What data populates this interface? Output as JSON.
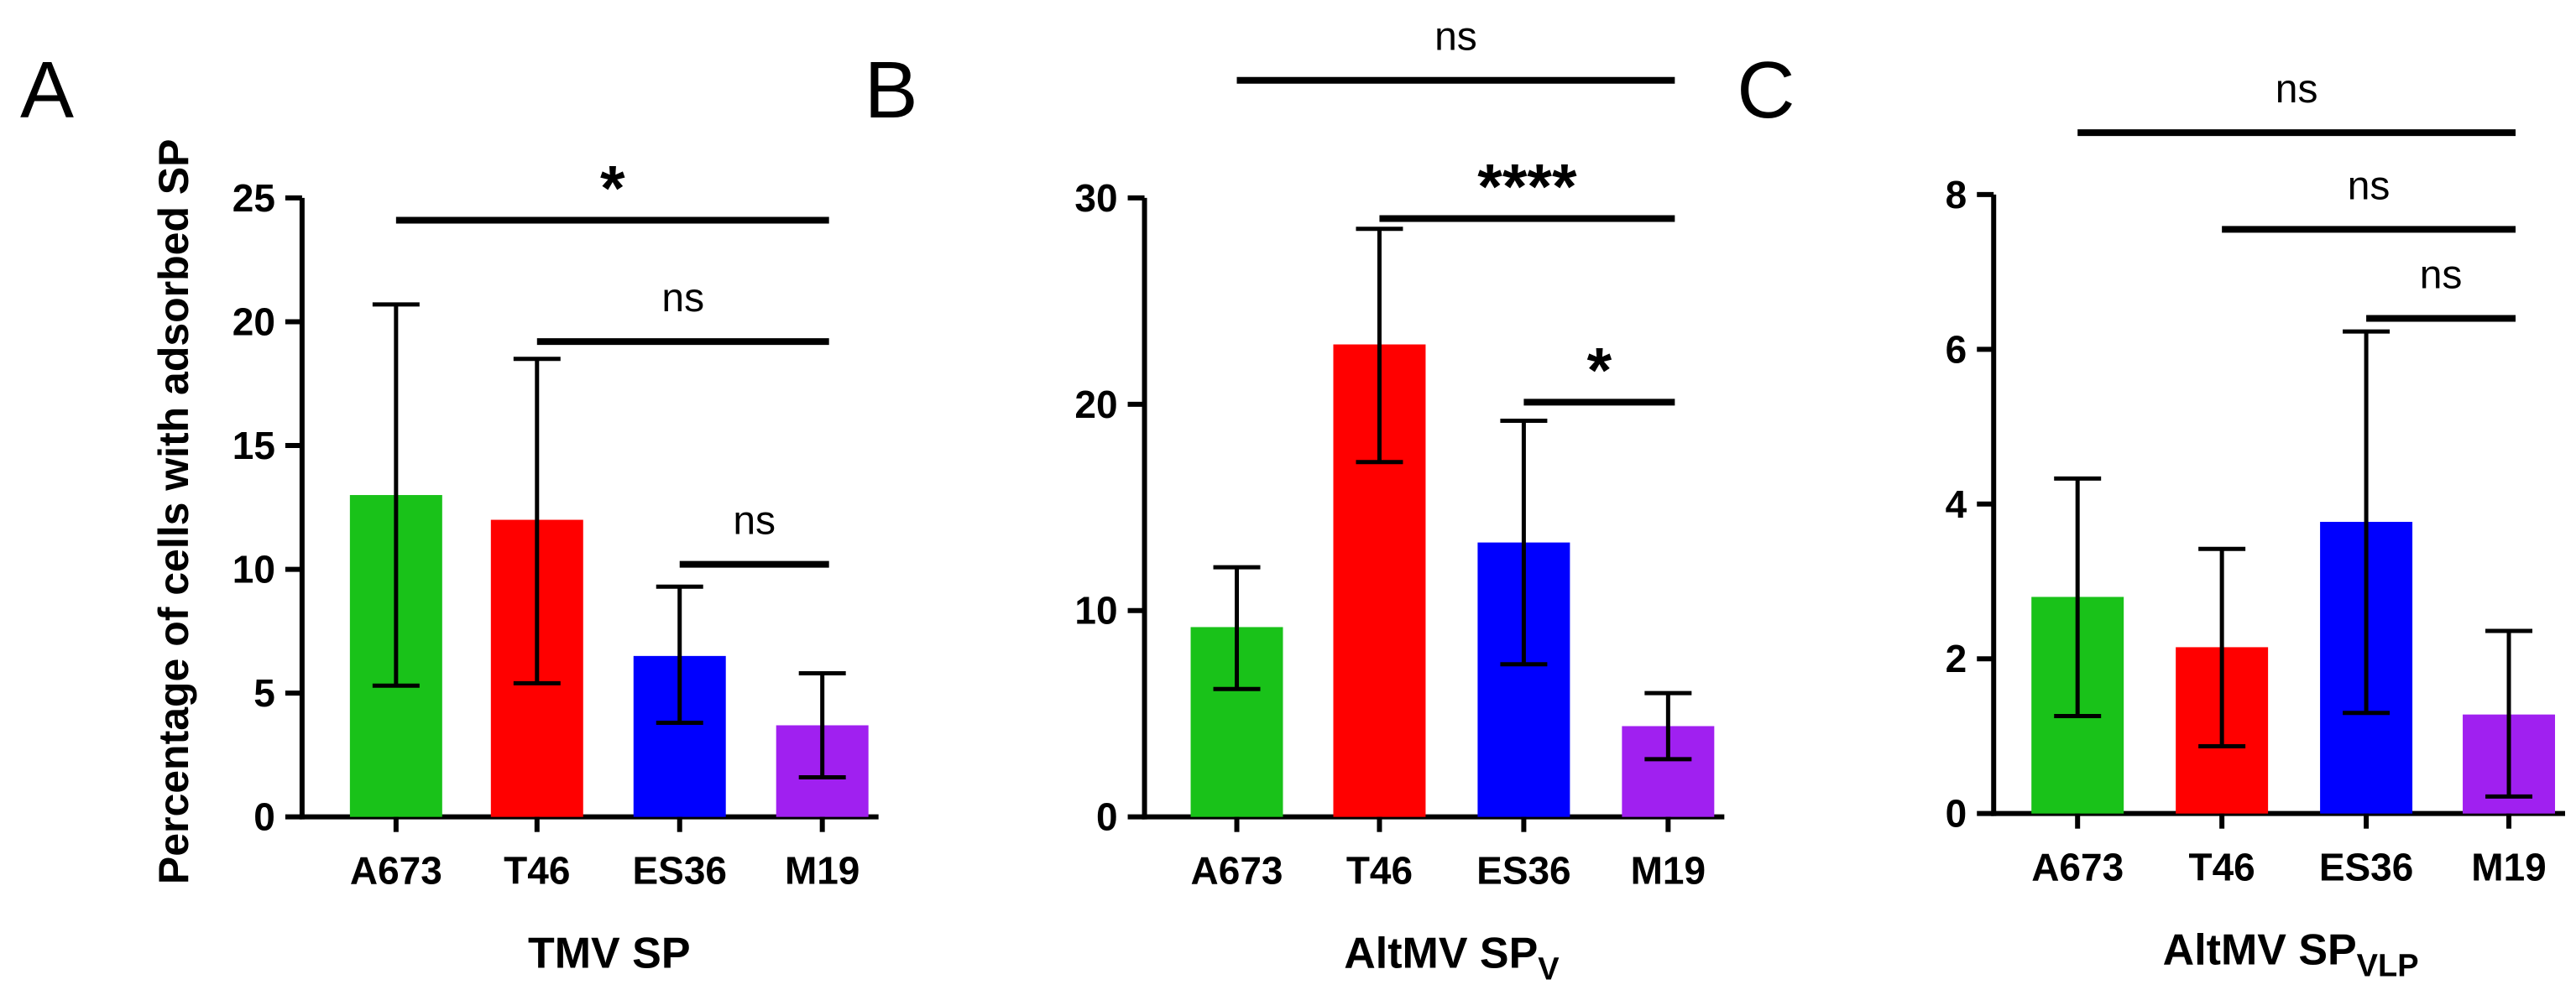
{
  "figure": {
    "y_axis_label": "Percentage of cells with adsorbed SP"
  },
  "chart_data": [
    {
      "panel_label": "A",
      "type": "bar",
      "categories": [
        "A673",
        "T46",
        "ES36",
        "M19"
      ],
      "values": [
        13.0,
        12.0,
        6.5,
        3.7
      ],
      "error_low": [
        5.3,
        5.4,
        3.8,
        1.6
      ],
      "error_high": [
        20.7,
        18.5,
        9.3,
        5.8
      ],
      "colors": [
        "#19c219",
        "#ff0000",
        "#0000ff",
        "#a020f0"
      ],
      "xlabel": "TMV SP",
      "xlabel_sub": "",
      "ylim": [
        0,
        25
      ],
      "yticks": [
        0,
        5,
        10,
        15,
        20,
        25
      ],
      "significance": [
        {
          "from": "A673",
          "to": "M19",
          "y": 24.1,
          "label": "*"
        },
        {
          "from": "T46",
          "to": "M19",
          "y": 19.2,
          "label": "ns"
        },
        {
          "from": "ES36",
          "to": "M19",
          "y": 10.2,
          "label": "ns"
        }
      ]
    },
    {
      "panel_label": "B",
      "type": "bar",
      "categories": [
        "A673",
        "T46",
        "ES36",
        "M19"
      ],
      "values": [
        9.2,
        22.9,
        13.3,
        4.4
      ],
      "error_low": [
        6.2,
        17.2,
        7.4,
        2.8
      ],
      "error_high": [
        12.1,
        28.5,
        19.2,
        6.0
      ],
      "colors": [
        "#19c219",
        "#ff0000",
        "#0000ff",
        "#a020f0"
      ],
      "xlabel": "AltMV SP",
      "xlabel_sub": "V",
      "ylim": [
        0,
        30
      ],
      "yticks": [
        0,
        10,
        20,
        30
      ],
      "significance": [
        {
          "from": "A673",
          "to": "M19",
          "y": 35.7,
          "label": "ns"
        },
        {
          "from": "T46",
          "to": "M19",
          "y": 29.0,
          "label": "****"
        },
        {
          "from": "ES36",
          "to": "M19",
          "y": 20.1,
          "label": "*"
        }
      ]
    },
    {
      "panel_label": "C",
      "type": "bar",
      "categories": [
        "A673",
        "T46",
        "ES36",
        "M19"
      ],
      "values": [
        2.8,
        2.15,
        3.77,
        1.28
      ],
      "error_low": [
        1.26,
        0.87,
        1.3,
        0.22
      ],
      "error_high": [
        4.33,
        3.42,
        6.23,
        2.36
      ],
      "colors": [
        "#19c219",
        "#ff0000",
        "#0000ff",
        "#a020f0"
      ],
      "xlabel": "AltMV SP",
      "xlabel_sub": "VLP",
      "ylim": [
        0,
        8
      ],
      "yticks": [
        0,
        2,
        4,
        6,
        8
      ],
      "significance": [
        {
          "from": "A673",
          "to": "M19",
          "y": 8.8,
          "label": "ns"
        },
        {
          "from": "T46",
          "to": "M19",
          "y": 7.55,
          "label": "ns"
        },
        {
          "from": "ES36",
          "to": "M19",
          "y": 6.4,
          "label": "ns"
        }
      ]
    }
  ]
}
